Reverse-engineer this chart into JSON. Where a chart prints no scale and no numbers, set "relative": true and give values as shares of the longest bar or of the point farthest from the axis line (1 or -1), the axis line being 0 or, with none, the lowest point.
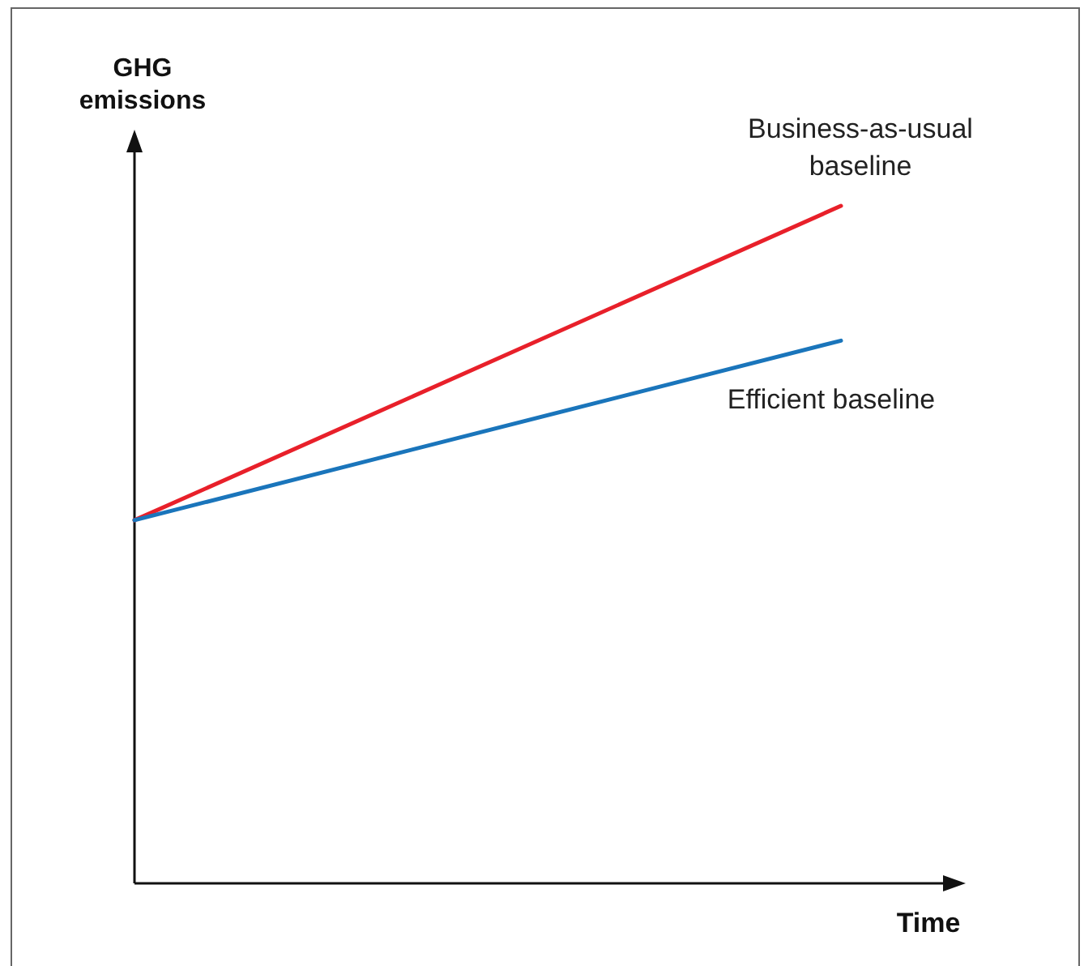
{
  "chart_data": {
    "type": "line",
    "relative": true,
    "xlabel": "Time",
    "ylabel": "GHG emissions",
    "categories": [
      null,
      null
    ],
    "grid": false,
    "marker": "none",
    "line_style": "solid",
    "series": [
      {
        "name": "Business-as-usual baseline",
        "color": "#e8202a",
        "values": [
          0.536,
          1
        ]
      },
      {
        "name": "Efficient baseline",
        "color": "#1a75bb",
        "values": [
          0.536,
          0.801
        ]
      }
    ]
  }
}
